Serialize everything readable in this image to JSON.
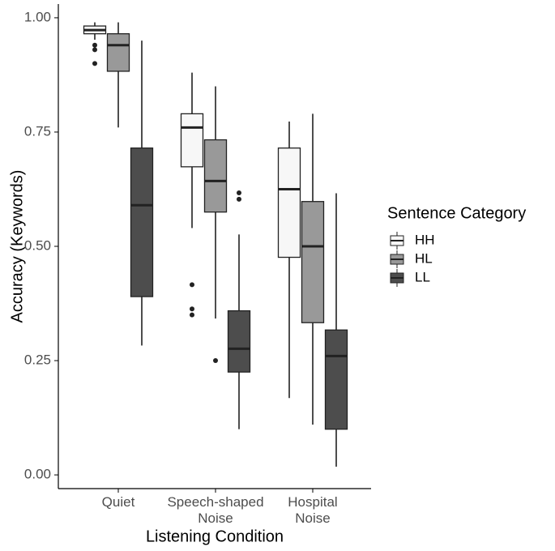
{
  "chart_data": {
    "type": "box",
    "x_label": "Listening Condition",
    "y_label": "Accuracy (Keywords)",
    "legend_title": "Sentence Category",
    "legend_position": "right",
    "categories": [
      "Quiet",
      "Speech-shaped\nNoise",
      "Hospital\nNoise"
    ],
    "ylim": [
      -0.03,
      1.03
    ],
    "yticks": [
      {
        "value": 0,
        "label": "0.00"
      },
      {
        "value": 0.25,
        "label": "0.25"
      },
      {
        "value": 0.5,
        "label": "0.50"
      },
      {
        "value": 0.75,
        "label": "0.75"
      },
      {
        "value": 1,
        "label": "1.00"
      }
    ],
    "series": [
      {
        "name": "HH",
        "color": "#f7f7f7",
        "values": [
          {
            "low": 0.952,
            "q1": 0.965,
            "median": 0.973,
            "q3": 0.982,
            "high": 0.99,
            "outliers": [
              0.94,
              0.93,
              0.9
            ]
          },
          {
            "low": 0.54,
            "q1": 0.674,
            "median": 0.76,
            "q3": 0.79,
            "high": 0.88,
            "outliers": [
              0.416,
              0.363,
              0.35
            ]
          },
          {
            "low": 0.168,
            "q1": 0.476,
            "median": 0.625,
            "q3": 0.715,
            "high": 0.773,
            "outliers": []
          }
        ]
      },
      {
        "name": "HL",
        "color": "#999999",
        "values": [
          {
            "low": 0.76,
            "q1": 0.883,
            "median": 0.94,
            "q3": 0.965,
            "high": 0.99,
            "outliers": []
          },
          {
            "low": 0.342,
            "q1": 0.575,
            "median": 0.643,
            "q3": 0.733,
            "high": 0.85,
            "outliers": [
              0.25
            ]
          },
          {
            "low": 0.11,
            "q1": 0.333,
            "median": 0.5,
            "q3": 0.598,
            "high": 0.79,
            "outliers": []
          }
        ]
      },
      {
        "name": "LL",
        "color": "#4d4d4d",
        "values": [
          {
            "low": 0.283,
            "q1": 0.39,
            "median": 0.59,
            "q3": 0.715,
            "high": 0.95,
            "outliers": []
          },
          {
            "low": 0.1,
            "q1": 0.225,
            "median": 0.276,
            "q3": 0.359,
            "high": 0.526,
            "outliers": [
              0.617,
              0.603
            ]
          },
          {
            "low": 0.018,
            "q1": 0.1,
            "median": 0.26,
            "q3": 0.317,
            "high": 0.616,
            "outliers": []
          }
        ]
      }
    ]
  }
}
